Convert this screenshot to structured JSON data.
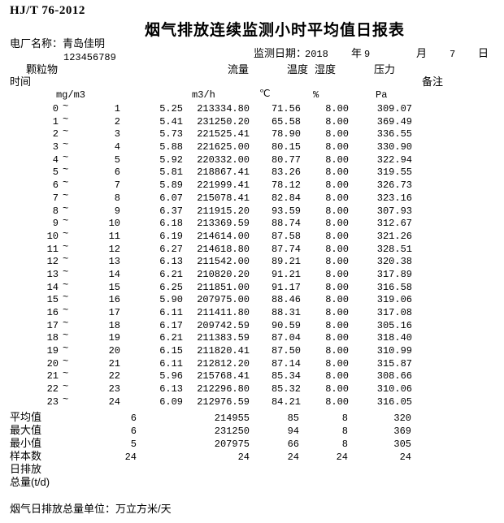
{
  "doc": {
    "standard_code": "HJ/T 76-2012",
    "title": "烟气排放连续监测小时平均值日报表",
    "plant_label": "电厂名称：",
    "plant_name": "青岛佳明",
    "plant_mark": "`",
    "plant_code": "123456789",
    "date_label": "监测日期：",
    "date_year": "2018",
    "year_label": "年",
    "date_month": "9",
    "month_label": "月",
    "date_day": "7",
    "day_label": "日"
  },
  "columns": {
    "time_label": "时间",
    "pm_label": "颗粒物",
    "flow_label": "流量",
    "temp_label": "温度",
    "humidity_label": "湿度",
    "pressure_label": "压力",
    "remark_label": "备注",
    "pm_unit": "mg/m3",
    "flow_unit": "m3/h",
    "temp_unit": "℃",
    "humidity_unit": "%",
    "pressure_unit": "Pa"
  },
  "tilde": "~",
  "rows": [
    {
      "start": "0",
      "end": "1",
      "pm": "5.25",
      "flow": "213334.80",
      "temp": "71.56",
      "humidity": "8.00",
      "pressure": "309.07"
    },
    {
      "start": "1",
      "end": "2",
      "pm": "5.41",
      "flow": "231250.20",
      "temp": "65.58",
      "humidity": "8.00",
      "pressure": "369.49"
    },
    {
      "start": "2",
      "end": "3",
      "pm": "5.73",
      "flow": "221525.41",
      "temp": "78.90",
      "humidity": "8.00",
      "pressure": "336.55"
    },
    {
      "start": "3",
      "end": "4",
      "pm": "5.88",
      "flow": "221625.00",
      "temp": "80.15",
      "humidity": "8.00",
      "pressure": "330.90"
    },
    {
      "start": "4",
      "end": "5",
      "pm": "5.92",
      "flow": "220332.00",
      "temp": "80.77",
      "humidity": "8.00",
      "pressure": "322.94"
    },
    {
      "start": "5",
      "end": "6",
      "pm": "5.81",
      "flow": "218867.41",
      "temp": "83.26",
      "humidity": "8.00",
      "pressure": "319.55"
    },
    {
      "start": "6",
      "end": "7",
      "pm": "5.89",
      "flow": "221999.41",
      "temp": "78.12",
      "humidity": "8.00",
      "pressure": "326.73"
    },
    {
      "start": "7",
      "end": "8",
      "pm": "6.07",
      "flow": "215078.41",
      "temp": "82.84",
      "humidity": "8.00",
      "pressure": "323.16"
    },
    {
      "start": "8",
      "end": "9",
      "pm": "6.37",
      "flow": "211915.20",
      "temp": "93.59",
      "humidity": "8.00",
      "pressure": "307.93"
    },
    {
      "start": "9",
      "end": "10",
      "pm": "6.18",
      "flow": "213369.59",
      "temp": "88.74",
      "humidity": "8.00",
      "pressure": "312.67"
    },
    {
      "start": "10",
      "end": "11",
      "pm": "6.19",
      "flow": "214614.00",
      "temp": "87.58",
      "humidity": "8.00",
      "pressure": "321.26"
    },
    {
      "start": "11",
      "end": "12",
      "pm": "6.27",
      "flow": "214618.80",
      "temp": "87.74",
      "humidity": "8.00",
      "pressure": "328.51"
    },
    {
      "start": "12",
      "end": "13",
      "pm": "6.13",
      "flow": "211542.00",
      "temp": "89.21",
      "humidity": "8.00",
      "pressure": "320.38"
    },
    {
      "start": "13",
      "end": "14",
      "pm": "6.21",
      "flow": "210820.20",
      "temp": "91.21",
      "humidity": "8.00",
      "pressure": "317.89"
    },
    {
      "start": "14",
      "end": "15",
      "pm": "6.25",
      "flow": "211851.00",
      "temp": "91.17",
      "humidity": "8.00",
      "pressure": "316.58"
    },
    {
      "start": "15",
      "end": "16",
      "pm": "5.90",
      "flow": "207975.00",
      "temp": "88.46",
      "humidity": "8.00",
      "pressure": "319.06"
    },
    {
      "start": "16",
      "end": "17",
      "pm": "6.11",
      "flow": "211411.80",
      "temp": "88.31",
      "humidity": "8.00",
      "pressure": "317.08"
    },
    {
      "start": "17",
      "end": "18",
      "pm": "6.17",
      "flow": "209742.59",
      "temp": "90.59",
      "humidity": "8.00",
      "pressure": "305.16"
    },
    {
      "start": "18",
      "end": "19",
      "pm": "6.21",
      "flow": "211383.59",
      "temp": "87.04",
      "humidity": "8.00",
      "pressure": "318.40"
    },
    {
      "start": "19",
      "end": "20",
      "pm": "6.15",
      "flow": "211820.41",
      "temp": "87.50",
      "humidity": "8.00",
      "pressure": "310.99"
    },
    {
      "start": "20",
      "end": "21",
      "pm": "6.11",
      "flow": "212812.20",
      "temp": "87.14",
      "humidity": "8.00",
      "pressure": "315.87"
    },
    {
      "start": "21",
      "end": "22",
      "pm": "5.96",
      "flow": "215768.41",
      "temp": "85.34",
      "humidity": "8.00",
      "pressure": "308.66"
    },
    {
      "start": "22",
      "end": "23",
      "pm": "6.13",
      "flow": "212296.80",
      "temp": "85.32",
      "humidity": "8.00",
      "pressure": "310.06"
    },
    {
      "start": "23",
      "end": "24",
      "pm": "6.09",
      "flow": "212976.59",
      "temp": "84.21",
      "humidity": "8.00",
      "pressure": "316.05"
    }
  ],
  "summary": [
    {
      "label": "平均值",
      "pm": "6",
      "flow": "214955",
      "temp": "85",
      "humidity": "8",
      "pressure": "320"
    },
    {
      "label": "最大值",
      "pm": "6",
      "flow": "231250",
      "temp": "94",
      "humidity": "8",
      "pressure": "369"
    },
    {
      "label": "最小值",
      "pm": "5",
      "flow": "207975",
      "temp": "66",
      "humidity": "8",
      "pressure": "305"
    },
    {
      "label": "样本数",
      "pm": "24",
      "flow": "24",
      "temp": "24",
      "humidity": "24",
      "pressure": "24"
    },
    {
      "label": "日排放",
      "pm": "",
      "flow": "",
      "temp": "",
      "humidity": "",
      "pressure": ""
    },
    {
      "label": "总量(t/d)",
      "pm": "",
      "flow": "",
      "temp": "",
      "humidity": "",
      "pressure": ""
    }
  ],
  "footer": {
    "note": "烟气日排放总量单位：万立方米/天"
  }
}
